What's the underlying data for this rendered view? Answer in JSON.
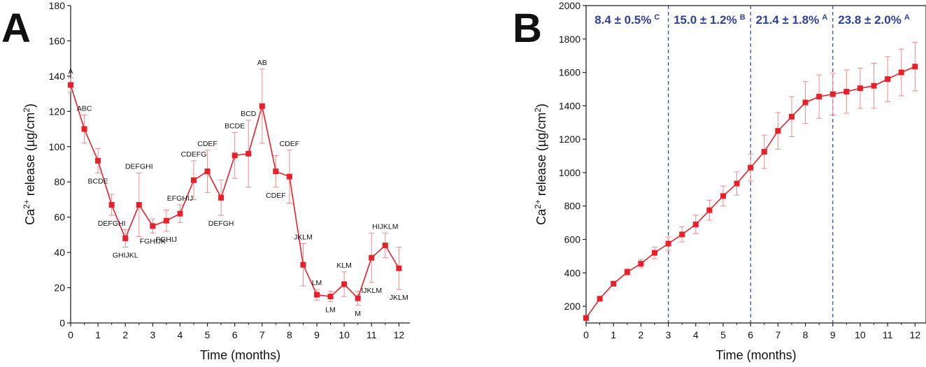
{
  "panels": [
    {
      "label": "A"
    },
    {
      "label": "B"
    }
  ],
  "colors": {
    "series": "#e8202a",
    "error": "#f08a8a",
    "annotation": "#2e3f9e",
    "axis": "#222222",
    "text": "#111111"
  },
  "chart_data": [
    {
      "type": "line",
      "xlabel": "Time (months)",
      "ylabel_prefix": "Ca",
      "ylabel_sup": "2+",
      "ylabel_mid": " release (µg/cm",
      "ylabel_unit_sup": "2",
      "ylabel_suffix": ")",
      "xlim": [
        0,
        12.4
      ],
      "ylim": [
        0,
        180
      ],
      "xticks": [
        "0",
        "1",
        "2",
        "3",
        "4",
        "5",
        "6",
        "7",
        "8",
        "9",
        "10",
        "11",
        "12"
      ],
      "yticks": [
        "0",
        "20",
        "40",
        "60",
        "80",
        "100",
        "120",
        "140",
        "160",
        "180"
      ],
      "series": [
        {
          "x": [
            0,
            0.5,
            1,
            1.5,
            2,
            2.5,
            3,
            3.5,
            4,
            4.5,
            5,
            5.5,
            6,
            6.5,
            7,
            7.5,
            8,
            8.5,
            9,
            9.5,
            10,
            10.5,
            11,
            11.5,
            12
          ],
          "y": [
            135,
            110,
            92,
            67,
            48,
            67,
            55,
            58,
            62,
            81,
            86,
            71,
            95,
            96,
            123,
            86,
            83,
            33,
            16,
            15,
            22,
            14,
            37,
            44,
            31
          ],
          "err": [
            4,
            8,
            7,
            6,
            5,
            18,
            4,
            6,
            5,
            11,
            12,
            10,
            13,
            19,
            21,
            9,
            15,
            12,
            3,
            3,
            7,
            4,
            14,
            7,
            12
          ],
          "labels": [
            "A",
            "ABC",
            "BCDE",
            "DEFGHI",
            "GHIJKL",
            "DEFGHI",
            "FGHIJK",
            "FGHIJ",
            "EFGHIJ",
            "CDEFG",
            "CDEF",
            "DEFGH",
            "BCDE",
            "BCD",
            "AB",
            "CDEF",
            "CDEF",
            "JKLM",
            "LM",
            "LM",
            "KLM",
            "M",
            "IJKLM",
            "HIJKLM",
            "JKLM"
          ],
          "label_pos": [
            "above",
            "above",
            "below",
            "below",
            "below",
            "above",
            "below",
            "below",
            "above",
            "above",
            "above",
            "below",
            "above",
            "above",
            "above",
            "below",
            "above",
            "above",
            "above",
            "below",
            "above",
            "below",
            "below",
            "above",
            "below"
          ]
        }
      ]
    },
    {
      "type": "line",
      "xlabel": "Time (months)",
      "ylabel_prefix": "Ca",
      "ylabel_sup": "2+",
      "ylabel_mid": " release (µg/cm",
      "ylabel_unit_sup": "2",
      "ylabel_suffix": ")",
      "xlim": [
        0,
        12.4
      ],
      "ylim": [
        100,
        2000
      ],
      "xticks": [
        "0",
        "1",
        "2",
        "3",
        "4",
        "5",
        "6",
        "7",
        "8",
        "9",
        "10",
        "11",
        "12"
      ],
      "yticks": [
        "200",
        "400",
        "600",
        "800",
        "1000",
        "1200",
        "1400",
        "1600",
        "1800",
        "2000"
      ],
      "series": [
        {
          "x": [
            0,
            0.5,
            1,
            1.5,
            2,
            2.5,
            3,
            3.5,
            4,
            4.5,
            5,
            5.5,
            6,
            6.5,
            7,
            7.5,
            8,
            8.5,
            9,
            9.5,
            10,
            10.5,
            11,
            11.5,
            12
          ],
          "y": [
            130,
            245,
            335,
            405,
            455,
            520,
            575,
            630,
            690,
            775,
            860,
            935,
            1030,
            1125,
            1250,
            1335,
            1420,
            1455,
            1470,
            1485,
            1505,
            1520,
            1560,
            1600,
            1635
          ],
          "err": [
            10,
            15,
            15,
            20,
            25,
            35,
            40,
            45,
            55,
            60,
            60,
            70,
            80,
            100,
            110,
            120,
            125,
            130,
            125,
            130,
            120,
            135,
            135,
            140,
            145
          ]
        }
      ],
      "vlines": [
        3,
        6,
        9
      ],
      "annotations": [
        {
          "text": "8.4 ± 0.5%",
          "sup": "C"
        },
        {
          "text": "15.0 ± 1.2%",
          "sup": "B"
        },
        {
          "text": "21.4 ± 1.8%",
          "sup": "A"
        },
        {
          "text": "23.8 ± 2.0%",
          "sup": "A"
        }
      ]
    }
  ]
}
